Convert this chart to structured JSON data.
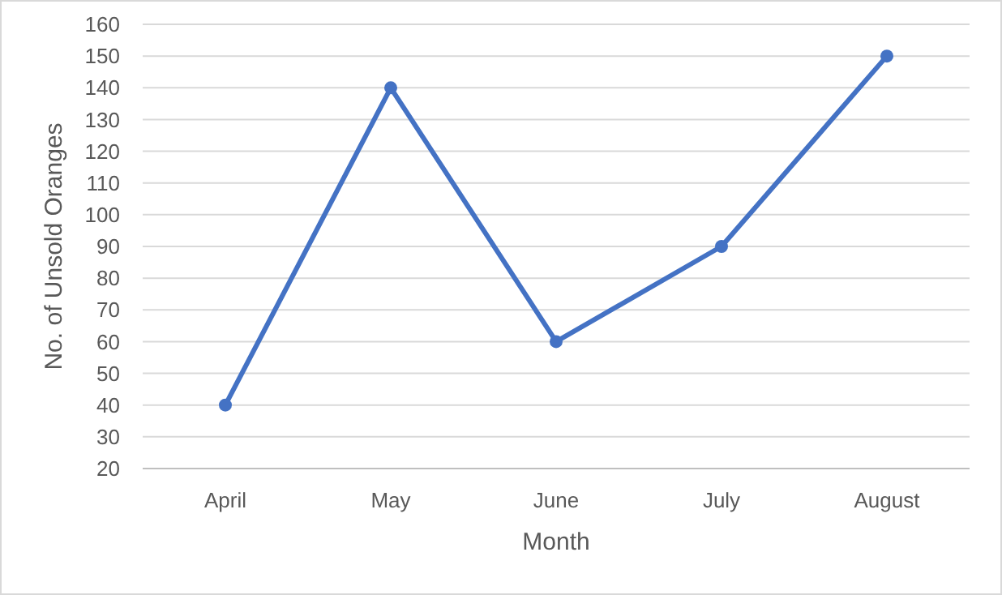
{
  "chart_data": {
    "type": "line",
    "xlabel": "Month",
    "ylabel": "No. of Unsold Oranges",
    "categories": [
      "April",
      "May",
      "June",
      "July",
      "August"
    ],
    "series": [
      {
        "color": "#4472c4",
        "values": [
          40,
          140,
          60,
          90,
          150
        ]
      }
    ],
    "ylim": [
      20,
      160
    ],
    "yticks": [
      20,
      30,
      40,
      50,
      60,
      70,
      80,
      90,
      100,
      110,
      120,
      130,
      140,
      150,
      160
    ],
    "grid": "y",
    "marker": "circle",
    "line_style": "solid"
  }
}
